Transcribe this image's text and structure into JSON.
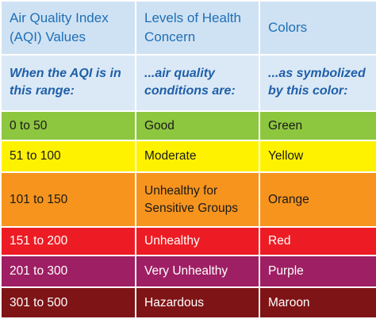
{
  "table": {
    "header": [
      "Air Quality Index (AQI) Values",
      "Levels of Health Concern",
      "Colors"
    ],
    "subheader": [
      "When the AQI is in this range:",
      "...air quality conditions are:",
      "...as symbolized by this color:"
    ],
    "rows": [
      [
        "0 to 50",
        "Good",
        "Green"
      ],
      [
        "51 to 100",
        "Moderate",
        "Yellow"
      ],
      [
        "101 to 150",
        "Unhealthy for Sensitive Groups",
        "Orange"
      ],
      [
        "151 to 200",
        "Unhealthy",
        "Red"
      ],
      [
        "201 to 300",
        "Very Unhealthy",
        "Purple"
      ],
      [
        "301 to 500",
        "Hazardous",
        "Maroon"
      ]
    ]
  }
}
